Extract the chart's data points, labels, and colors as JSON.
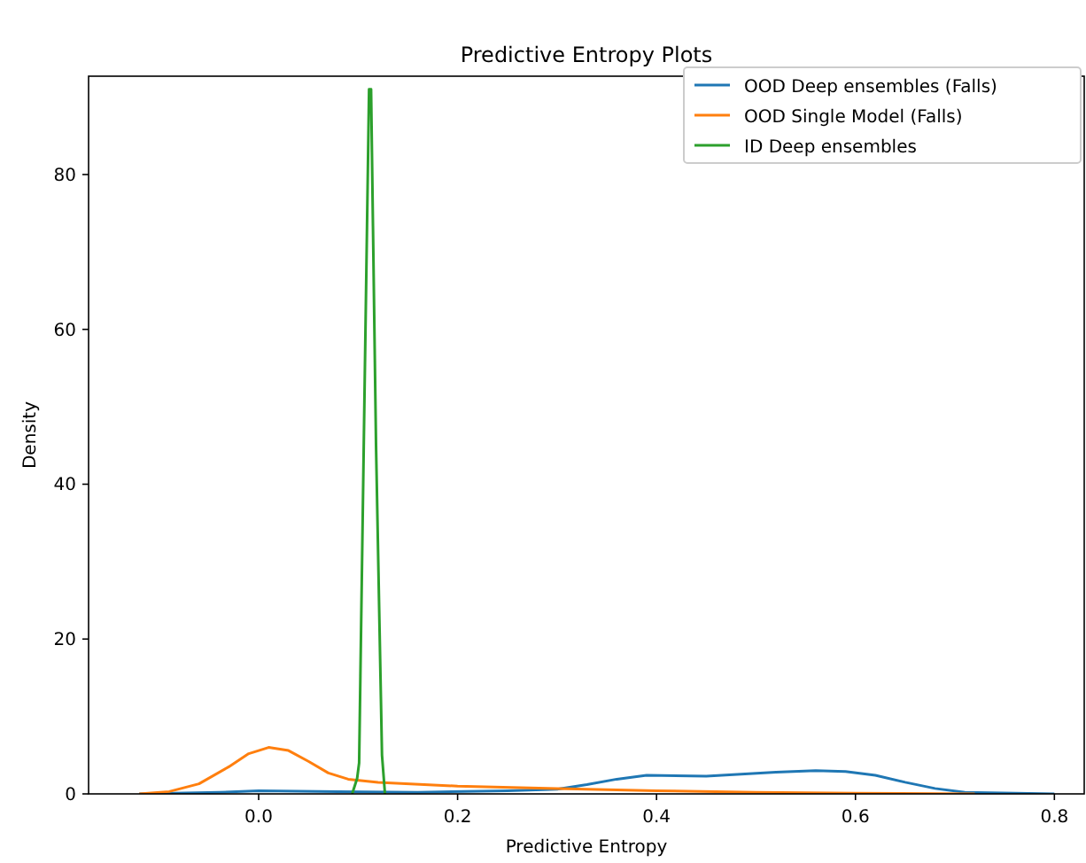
{
  "chart_data": {
    "type": "line",
    "title": "Predictive Entropy Plots",
    "xlabel": "Predictive Entropy",
    "ylabel": "Density",
    "xlim": [
      -0.171,
      0.83
    ],
    "ylim": [
      0,
      92.7
    ],
    "xticks": [
      {
        "value": 0,
        "label": "0.0"
      },
      {
        "value": 0.2,
        "label": "0.2"
      },
      {
        "value": 0.4,
        "label": "0.4"
      },
      {
        "value": 0.6,
        "label": "0.6"
      },
      {
        "value": 0.8,
        "label": "0.8"
      }
    ],
    "yticks": [
      0,
      20,
      40,
      60,
      80
    ],
    "legend": "top right",
    "line_style": "solid",
    "series": [
      {
        "name": "OOD Deep ensembles (Falls)",
        "color": "#1f77b4",
        "x": [
          -0.12,
          -0.04,
          0,
          0.08,
          0.16,
          0.25,
          0.3,
          0.33,
          0.36,
          0.39,
          0.45,
          0.52,
          0.56,
          0.59,
          0.62,
          0.65,
          0.68,
          0.71,
          0.8
        ],
        "values": [
          0,
          0.2,
          0.4,
          0.3,
          0.2,
          0.4,
          0.6,
          1.2,
          1.9,
          2.4,
          2.3,
          2.8,
          3.0,
          2.9,
          2.4,
          1.5,
          0.7,
          0.2,
          0
        ]
      },
      {
        "name": "OOD Single Model (Falls)",
        "color": "#ff7f0e",
        "x": [
          -0.12,
          -0.09,
          -0.06,
          -0.03,
          -0.01,
          0.01,
          0.03,
          0.05,
          0.07,
          0.09,
          0.12,
          0.2,
          0.3,
          0.4,
          0.5,
          0.6,
          0.72
        ],
        "values": [
          0,
          0.3,
          1.3,
          3.5,
          5.2,
          6.0,
          5.6,
          4.2,
          2.7,
          1.9,
          1.5,
          1.0,
          0.7,
          0.4,
          0.2,
          0.1,
          0
        ]
      },
      {
        "name": "ID Deep ensembles",
        "color": "#2ca02c",
        "x": [
          0.094,
          0.099,
          0.101,
          0.106,
          0.111,
          0.113,
          0.118,
          0.124,
          0.127
        ],
        "values": [
          0,
          2,
          4,
          48,
          91,
          91,
          45,
          5,
          0
        ]
      }
    ]
  }
}
